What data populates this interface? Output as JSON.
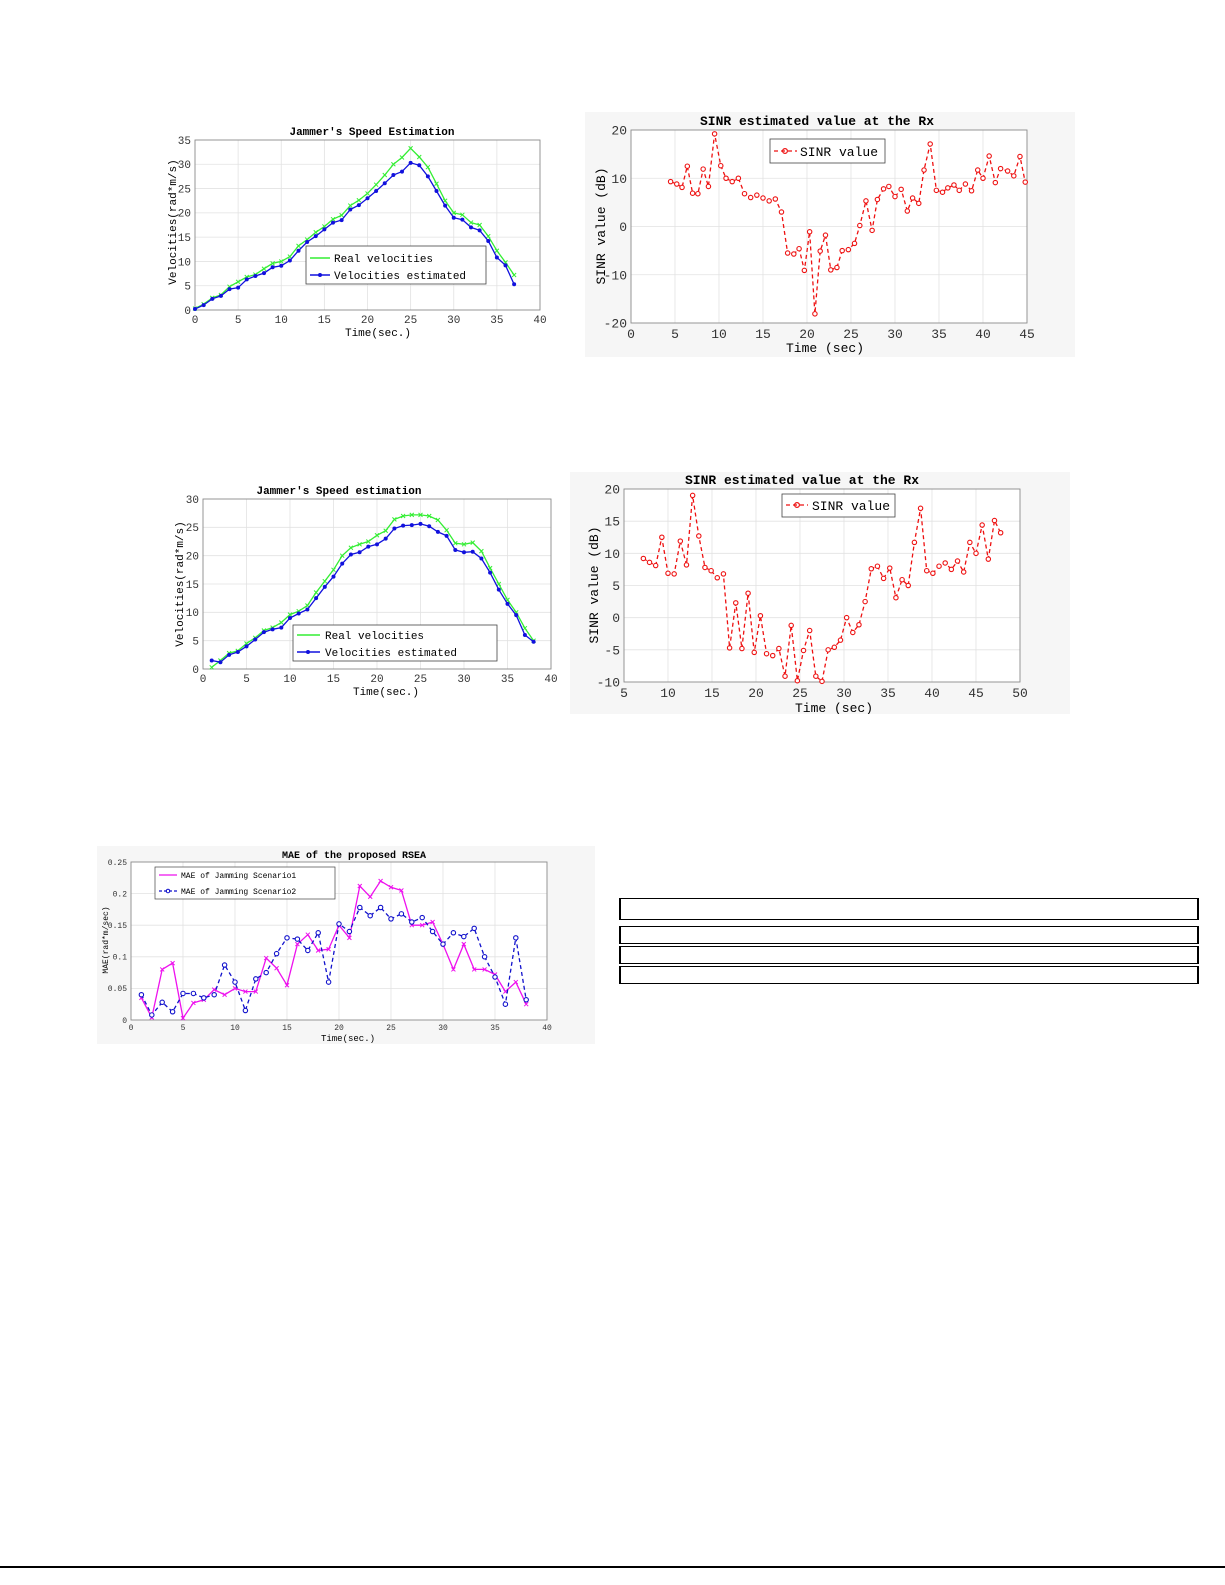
{
  "colors": {
    "real": "#33ee33",
    "estimated": "#1111dd",
    "sinr": "#ee1111",
    "scenario1": "#ee11ee",
    "scenario2": "#1111cc",
    "grid": "#e2e2e2",
    "axis": "#8c8c8c"
  },
  "chart_data": [
    {
      "id": "speed1",
      "type": "line",
      "title": "Jammer's Speed Estimation",
      "xlabel": "Time(sec.)",
      "ylabel": "Velocities(rad*m/s)",
      "xlim": [
        0,
        40
      ],
      "ylim": [
        0,
        35
      ],
      "xticks": [
        0,
        5,
        10,
        15,
        20,
        25,
        30,
        35,
        40
      ],
      "yticks": [
        0,
        5,
        10,
        15,
        20,
        25,
        30,
        35
      ],
      "grid": true,
      "legend": "bottom-right",
      "series": [
        {
          "name": "Real velocities",
          "color_key": "real",
          "marker": "x",
          "dash": "",
          "x": [
            0,
            1,
            2,
            3,
            4,
            5,
            6,
            7,
            8,
            9,
            10,
            11,
            12,
            13,
            14,
            15,
            16,
            17,
            18,
            19,
            20,
            21,
            22,
            23,
            24,
            25,
            26,
            27,
            28,
            29,
            30,
            31,
            32,
            33,
            34,
            35,
            36,
            37
          ],
          "y": [
            0.3,
            1.2,
            2.5,
            3.1,
            4.8,
            5.8,
            6.8,
            7.3,
            8.5,
            9.6,
            10,
            11,
            13.2,
            14.5,
            16,
            17.2,
            18.7,
            19.5,
            21.5,
            22.6,
            24,
            25.8,
            27.8,
            30,
            31.4,
            33.3,
            31.5,
            29.4,
            26,
            22.5,
            20,
            19.6,
            18,
            17.5,
            15.2,
            12.2,
            9.8,
            7.2
          ]
        },
        {
          "name": "Velocities estimated",
          "color_key": "estimated",
          "marker": "dot",
          "dash": "",
          "x": [
            0,
            1,
            2,
            3,
            4,
            5,
            6,
            7,
            8,
            9,
            10,
            11,
            12,
            13,
            14,
            15,
            16,
            17,
            18,
            19,
            20,
            21,
            22,
            23,
            24,
            25,
            26,
            27,
            28,
            29,
            30,
            31,
            32,
            33,
            34,
            35,
            36,
            37
          ],
          "y": [
            0.2,
            1,
            2.3,
            2.9,
            4.3,
            4.6,
            6.3,
            7,
            7.6,
            8.8,
            9.1,
            10.2,
            12.2,
            14,
            15.2,
            16.6,
            18,
            18.5,
            20.7,
            21.6,
            23,
            24.5,
            26.1,
            27.8,
            28.5,
            30.3,
            29.8,
            27.5,
            24.5,
            21.5,
            19,
            18.6,
            17,
            16.4,
            14.2,
            10.8,
            9.2,
            5.3
          ]
        }
      ]
    },
    {
      "id": "sinr1",
      "type": "line",
      "title": "SINR estimated value at the Rx",
      "xlabel": "Time (sec)",
      "ylabel": "SINR value (dB)",
      "xlim": [
        0,
        45
      ],
      "ylim": [
        -20,
        20
      ],
      "xticks": [
        0,
        5,
        10,
        15,
        20,
        25,
        30,
        35,
        40,
        45
      ],
      "yticks": [
        -20,
        -10,
        0,
        10,
        20
      ],
      "grid": true,
      "legend": "top-center",
      "series": [
        {
          "name": "SINR value",
          "color_key": "sinr",
          "marker": "circle",
          "dash": "4,3",
          "x": [
            4.5,
            5.2,
            5.8,
            6.4,
            7,
            7.6,
            8.2,
            8.8,
            9.5,
            10.2,
            10.8,
            11.5,
            12.2,
            12.9,
            13.6,
            14.3,
            15,
            15.7,
            16.4,
            17.1,
            17.8,
            18.5,
            19.1,
            19.7,
            20.3,
            20.9,
            21.5,
            22.1,
            22.7,
            23.4,
            24,
            24.7,
            25.4,
            26,
            26.7,
            27.4,
            28,
            28.7,
            29.3,
            30,
            30.7,
            31.4,
            32,
            32.7,
            33.3,
            34,
            34.7,
            35.4,
            36,
            36.7,
            37.3,
            38,
            38.7,
            39.4,
            40,
            40.7,
            41.4,
            42,
            42.8,
            43.5,
            44.2,
            44.8
          ],
          "y": [
            9.3,
            8.8,
            8.1,
            12.5,
            6.9,
            6.8,
            11.9,
            8.3,
            19.2,
            12.6,
            10,
            9.3,
            10,
            6.8,
            6,
            6.5,
            5.9,
            5.3,
            5.7,
            3,
            -5.5,
            -5.7,
            -4.6,
            -9.1,
            -1.1,
            -18.1,
            -5.1,
            -1.8,
            -9,
            -8.5,
            -5,
            -4.8,
            -3.5,
            0.2,
            5.3,
            -0.8,
            5.6,
            7.8,
            8.3,
            6.2,
            7.7,
            3.2,
            5.9,
            4.8,
            11.7,
            17.1,
            7.5,
            7.1,
            8,
            8.6,
            7.5,
            8.8,
            7.4,
            11.7,
            10,
            14.6,
            9.1,
            12,
            11.5,
            10.5,
            14.5,
            9.2
          ]
        }
      ]
    },
    {
      "id": "speed2",
      "type": "line",
      "title": "Jammer's Speed estimation",
      "xlabel": "Time(sec.)",
      "ylabel": "Velocities(rad*m/s)",
      "xlim": [
        0,
        40
      ],
      "ylim": [
        0,
        30
      ],
      "xticks": [
        0,
        5,
        10,
        15,
        20,
        25,
        30,
        35,
        40
      ],
      "yticks": [
        0,
        5,
        10,
        15,
        20,
        25,
        30
      ],
      "grid": true,
      "legend": "bottom-center",
      "series": [
        {
          "name": "Real velocities",
          "color_key": "real",
          "marker": "x",
          "dash": "",
          "x": [
            1,
            2,
            3,
            4,
            5,
            6,
            7,
            8,
            9,
            10,
            11,
            12,
            13,
            14,
            15,
            16,
            17,
            18,
            19,
            20,
            21,
            22,
            23,
            24,
            25,
            26,
            27,
            28,
            29,
            30,
            31,
            32,
            33,
            34,
            35,
            36,
            37,
            38
          ],
          "y": [
            0.3,
            1.5,
            2.8,
            3.2,
            4.5,
            5.5,
            6.8,
            7.3,
            8.2,
            9.6,
            10.2,
            11.2,
            13.5,
            15.5,
            17.5,
            20,
            21.4,
            22,
            22.5,
            23.6,
            24.4,
            26.4,
            27,
            27.2,
            27.2,
            27,
            26.3,
            24.5,
            22.2,
            22,
            22.3,
            20.8,
            17.8,
            15,
            12.2,
            10,
            7.2,
            5
          ]
        },
        {
          "name": "Velocities estimated",
          "color_key": "estimated",
          "marker": "dot",
          "dash": "",
          "x": [
            1,
            2,
            3,
            4,
            5,
            6,
            7,
            8,
            9,
            10,
            11,
            12,
            13,
            14,
            15,
            16,
            17,
            18,
            19,
            20,
            21,
            22,
            23,
            24,
            25,
            26,
            27,
            28,
            29,
            30,
            31,
            32,
            33,
            34,
            35,
            36,
            37,
            38
          ],
          "y": [
            1.5,
            1.2,
            2.5,
            3,
            4,
            5.2,
            6.5,
            7,
            7.3,
            9,
            9.8,
            10.5,
            12.5,
            14.5,
            16.3,
            18.6,
            20.2,
            20.6,
            21.6,
            22,
            23,
            24.8,
            25.3,
            25.4,
            25.6,
            25.2,
            24.2,
            23.5,
            21,
            20.6,
            20.7,
            19.5,
            17,
            14,
            11.5,
            9.5,
            6,
            4.8
          ]
        }
      ]
    },
    {
      "id": "sinr2",
      "type": "line",
      "title": "SINR estimated value at the Rx",
      "xlabel": "Time (sec)",
      "ylabel": "SINR value (dB)",
      "xlim": [
        5,
        50
      ],
      "ylim": [
        -10,
        20
      ],
      "xticks": [
        5,
        10,
        15,
        20,
        25,
        30,
        35,
        40,
        45,
        50
      ],
      "yticks": [
        -10,
        -5,
        0,
        5,
        10,
        15,
        20
      ],
      "grid": true,
      "legend": "top-center",
      "series": [
        {
          "name": "SINR value",
          "color_key": "sinr",
          "marker": "circle",
          "dash": "4,3",
          "x": [
            7.2,
            7.9,
            8.6,
            9.3,
            10,
            10.7,
            11.4,
            12.1,
            12.8,
            13.5,
            14.2,
            14.9,
            15.6,
            16.3,
            17,
            17.7,
            18.4,
            19.1,
            19.8,
            20.5,
            21.2,
            21.9,
            22.6,
            23.3,
            24,
            24.7,
            25.4,
            26.1,
            26.8,
            27.5,
            28.2,
            28.9,
            29.6,
            30.3,
            31,
            31.7,
            32.4,
            33.1,
            33.8,
            34.5,
            35.2,
            35.9,
            36.6,
            37.3,
            38,
            38.7,
            39.4,
            40.1,
            40.8,
            41.5,
            42.2,
            42.9,
            43.6,
            44.3,
            45,
            45.7,
            46.4,
            47.1,
            47.8
          ],
          "y": [
            9.2,
            8.6,
            8.1,
            12.5,
            6.9,
            6.8,
            11.9,
            8.2,
            19,
            12.7,
            7.8,
            7.3,
            6.2,
            6.8,
            -4.7,
            2.3,
            -4.8,
            3.8,
            -5.4,
            0.3,
            -5.6,
            -5.9,
            -4.8,
            -9.1,
            -1.2,
            -9.8,
            -5.1,
            -2,
            -9.1,
            -9.9,
            -5,
            -4.6,
            -3.5,
            0,
            -2.3,
            -1.1,
            2.5,
            7.6,
            8,
            6.1,
            7.7,
            3.1,
            5.9,
            5,
            11.7,
            17,
            7.3,
            6.9,
            8,
            8.5,
            7.5,
            8.8,
            7.1,
            11.7,
            10,
            14.4,
            9.1,
            15.1,
            13.2
          ]
        }
      ]
    },
    {
      "id": "mae",
      "type": "line",
      "title": "MAE of the proposed RSEA",
      "xlabel": "Time(sec.)",
      "ylabel": "MAE(rad*m/sec)",
      "xlim": [
        0,
        40
      ],
      "ylim": [
        0,
        0.25
      ],
      "xticks": [
        0,
        5,
        10,
        15,
        20,
        25,
        30,
        35,
        40
      ],
      "yticks": [
        0,
        0.05,
        0.1,
        0.15,
        0.2,
        0.25
      ],
      "grid": true,
      "legend": "top-left",
      "series": [
        {
          "name": "MAE of Jamming Scenario1",
          "color_key": "scenario1",
          "marker": "x",
          "dash": "",
          "x": [
            1,
            2,
            3,
            4,
            5,
            6,
            7,
            8,
            9,
            10,
            11,
            12,
            13,
            14,
            15,
            16,
            17,
            18,
            19,
            20,
            21,
            22,
            23,
            24,
            25,
            26,
            27,
            28,
            29,
            30,
            31,
            32,
            33,
            34,
            35,
            36,
            37,
            38
          ],
          "y": [
            0.035,
            0.004,
            0.08,
            0.09,
            0.003,
            0.027,
            0.032,
            0.048,
            0.04,
            0.05,
            0.045,
            0.045,
            0.098,
            0.082,
            0.055,
            0.12,
            0.135,
            0.11,
            0.112,
            0.15,
            0.13,
            0.212,
            0.195,
            0.22,
            0.21,
            0.205,
            0.15,
            0.15,
            0.155,
            0.12,
            0.08,
            0.12,
            0.08,
            0.08,
            0.072,
            0.045,
            0.06,
            0.025
          ]
        },
        {
          "name": "MAE of Jamming Scenario2",
          "color_key": "scenario2",
          "marker": "circle",
          "dash": "4,3",
          "x": [
            1,
            2,
            3,
            4,
            5,
            6,
            7,
            8,
            9,
            10,
            11,
            12,
            13,
            14,
            15,
            16,
            17,
            18,
            19,
            20,
            21,
            22,
            23,
            24,
            25,
            26,
            27,
            28,
            29,
            30,
            31,
            32,
            33,
            34,
            35,
            36,
            37,
            38
          ],
          "y": [
            0.04,
            0.008,
            0.028,
            0.013,
            0.042,
            0.042,
            0.035,
            0.04,
            0.087,
            0.06,
            0.015,
            0.065,
            0.075,
            0.105,
            0.13,
            0.128,
            0.11,
            0.138,
            0.06,
            0.152,
            0.14,
            0.178,
            0.165,
            0.178,
            0.16,
            0.168,
            0.155,
            0.162,
            0.14,
            0.12,
            0.138,
            0.132,
            0.145,
            0.1,
            0.068,
            0.025,
            0.13,
            0.032
          ]
        }
      ]
    }
  ]
}
